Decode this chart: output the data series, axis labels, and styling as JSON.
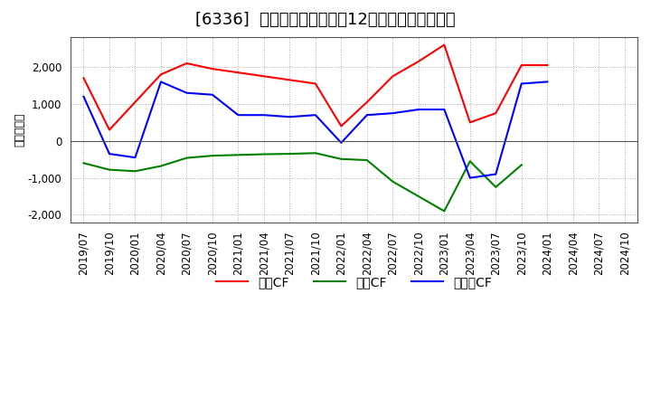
{
  "title": "[6336]  キャッシュフローの12か月移動合計の推移",
  "ylabel": "（百万円）",
  "ylim": [
    -2200,
    2800
  ],
  "yticks": [
    -2000,
    -1000,
    0,
    1000,
    2000
  ],
  "background_color": "#ffffff",
  "plot_bg_color": "#ffffff",
  "grid_color": "#aaaaaa",
  "dates": [
    "2019/07",
    "2019/10",
    "2020/01",
    "2020/04",
    "2020/07",
    "2020/10",
    "2021/01",
    "2021/04",
    "2021/07",
    "2021/10",
    "2022/01",
    "2022/04",
    "2022/07",
    "2022/10",
    "2023/01",
    "2023/04",
    "2023/07",
    "2023/10",
    "2024/01",
    "2024/04",
    "2024/07",
    "2024/10"
  ],
  "operating_cf": [
    1700,
    300,
    1050,
    1800,
    2100,
    1950,
    1850,
    1750,
    1650,
    1550,
    400,
    1050,
    1750,
    2150,
    2600,
    500,
    750,
    2050,
    2050,
    null,
    null,
    null
  ],
  "investing_cf": [
    -600,
    -780,
    -820,
    -680,
    -460,
    -400,
    -380,
    -360,
    -350,
    -330,
    -490,
    -520,
    -1100,
    -1500,
    -1900,
    -550,
    -1250,
    -650,
    null,
    null,
    null,
    null
  ],
  "free_cf": [
    1200,
    -350,
    -450,
    1600,
    1300,
    1250,
    700,
    700,
    650,
    700,
    -50,
    700,
    750,
    850,
    850,
    -1000,
    -900,
    1550,
    1600,
    null,
    null,
    null
  ],
  "series_colors": {
    "operating": "#ff0000",
    "investing": "#008000",
    "free": "#0000ff"
  },
  "legend_labels": {
    "operating": "営業CF",
    "investing": "投資CF",
    "free": "フリーCF"
  },
  "title_fontsize": 13,
  "tick_fontsize": 8.5,
  "ylabel_fontsize": 9,
  "linewidth": 1.5
}
